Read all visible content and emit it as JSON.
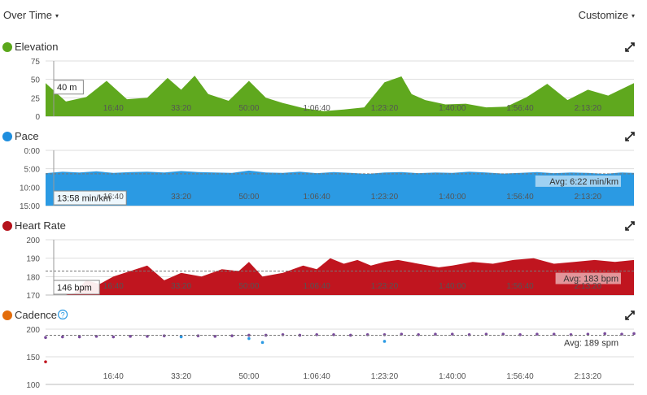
{
  "header": {
    "view_label": "Over Time",
    "caret": "▾",
    "customize_label": "Customize"
  },
  "x_ticks": [
    "16:40",
    "33:20",
    "50:00",
    "1:06:40",
    "1:23:20",
    "1:40:00",
    "1:56:40",
    "2:13:20"
  ],
  "chart_data": [
    {
      "type": "area",
      "title": "Elevation",
      "color": "#5fa81e",
      "marker_color": "#5ba71b",
      "icon": "expand-icon",
      "ylim": [
        0,
        75
      ],
      "yticks": [
        "75",
        "50",
        "25",
        "0"
      ],
      "reverse": false,
      "x_ticks_s": [
        1000,
        2000,
        3000,
        4000,
        5000,
        6000,
        7000,
        8000
      ],
      "xlim_s": [
        0,
        8680
      ],
      "tooltip": "40 m",
      "tooltip_value": 40,
      "avg_label": "",
      "x_s": [
        0,
        300,
        600,
        900,
        1200,
        1500,
        1800,
        2000,
        2200,
        2400,
        2700,
        3000,
        3250,
        3500,
        3800,
        4100,
        4400,
        4700,
        5000,
        5250,
        5400,
        5600,
        5900,
        6200,
        6500,
        6800,
        7100,
        7400,
        7700,
        8000,
        8300,
        8680
      ],
      "values": [
        45,
        20,
        26,
        48,
        23,
        25,
        52,
        36,
        55,
        30,
        21,
        48,
        25,
        18,
        11,
        7,
        9,
        12,
        46,
        54,
        30,
        22,
        16,
        17,
        12,
        13,
        26,
        44,
        22,
        36,
        28,
        45
      ]
    },
    {
      "type": "area",
      "title": "Pace",
      "color": "#2b9ae3",
      "marker_color": "#1e8ede",
      "icon": "expand-icon",
      "ylim": [
        0,
        15
      ],
      "yticks": [
        "0:00",
        "5:00",
        "10:00",
        "15:00"
      ],
      "reverse": true,
      "x_ticks_s": [
        1000,
        2000,
        3000,
        4000,
        5000,
        6000,
        7000,
        8000
      ],
      "xlim_s": [
        0,
        8680
      ],
      "tooltip": "13:58 min/km",
      "tooltip_value": 13.97,
      "avg_label": "Avg: 6:22 min/km",
      "avg_value": 6.37,
      "x_s": [
        0,
        250,
        500,
        750,
        1000,
        1250,
        1500,
        1750,
        2000,
        2250,
        2500,
        2750,
        3000,
        3250,
        3500,
        3750,
        4000,
        4250,
        4500,
        4750,
        5000,
        5250,
        5500,
        5750,
        6000,
        6250,
        6500,
        6750,
        7000,
        7250,
        7500,
        7750,
        8000,
        8250,
        8500,
        8680
      ],
      "values": [
        6.2,
        5.8,
        6.0,
        5.7,
        6.1,
        5.9,
        5.8,
        6.0,
        5.6,
        5.9,
        6.0,
        6.1,
        5.5,
        6.0,
        6.1,
        5.8,
        6.2,
        5.9,
        6.1,
        6.4,
        6.0,
        5.9,
        6.2,
        6.0,
        6.1,
        5.8,
        6.0,
        6.3,
        6.1,
        5.9,
        6.2,
        6.0,
        6.1,
        6.4,
        6.0,
        6.1
      ]
    },
    {
      "type": "area",
      "title": "Heart Rate",
      "color": "#c0151f",
      "marker_color": "#b5121b",
      "icon": "expand-icon",
      "ylim": [
        170,
        200
      ],
      "yticks": [
        "200",
        "190",
        "180",
        "170"
      ],
      "reverse": false,
      "x_ticks_s": [
        1000,
        2000,
        3000,
        4000,
        5000,
        6000,
        7000,
        8000
      ],
      "xlim_s": [
        0,
        8680
      ],
      "tooltip": "146 bpm",
      "tooltip_value": 146,
      "avg_label": "Avg: 183 bpm",
      "avg_value": 183,
      "x_s": [
        0,
        300,
        420,
        600,
        800,
        1000,
        1250,
        1500,
        1750,
        2000,
        2300,
        2600,
        2850,
        3000,
        3200,
        3500,
        3800,
        4000,
        4200,
        4400,
        4600,
        4800,
        5000,
        5200,
        5500,
        5800,
        6000,
        6300,
        6600,
        6900,
        7200,
        7500,
        7800,
        8100,
        8400,
        8680
      ],
      "values": [
        165,
        166,
        171,
        178,
        176,
        180,
        183,
        186,
        178,
        182,
        180,
        184,
        183,
        188,
        180,
        182,
        186,
        184,
        190,
        187,
        189,
        186,
        188,
        189,
        187,
        185,
        186,
        188,
        187,
        189,
        190,
        187,
        188,
        189,
        188,
        189
      ]
    },
    {
      "type": "scatter",
      "title": "Cadence",
      "color": "#7a4d9c",
      "marker_color": "#e36c0a",
      "icon": "expand-icon",
      "help_icon": "?",
      "ylim": [
        100,
        200
      ],
      "yticks": [
        "200",
        "150",
        "100"
      ],
      "reverse": false,
      "x_ticks_s": [
        1000,
        2000,
        3000,
        4000,
        5000,
        6000,
        7000,
        8000
      ],
      "xlim_s": [
        0,
        8680
      ],
      "tooltip": "",
      "avg_label": "Avg: 189 spm",
      "avg_value": 189,
      "x_s": [
        0,
        250,
        500,
        750,
        1000,
        1250,
        1500,
        1750,
        2000,
        2250,
        2500,
        2750,
        3000,
        3250,
        3500,
        3750,
        4000,
        4250,
        4500,
        4750,
        5000,
        5250,
        5500,
        5750,
        6000,
        6250,
        6500,
        6750,
        7000,
        7250,
        7500,
        7750,
        8000,
        8250,
        8500,
        8680
      ],
      "values": [
        185,
        186,
        186,
        187,
        186,
        187,
        187,
        188,
        187,
        188,
        187,
        188,
        189,
        189,
        190,
        189,
        190,
        190,
        189,
        190,
        190,
        191,
        190,
        191,
        191,
        190,
        191,
        191,
        190,
        191,
        191,
        190,
        191,
        192,
        191,
        192
      ],
      "outliers": [
        {
          "x": 0,
          "y": 141
        },
        {
          "x": 3200,
          "y": 176
        },
        {
          "x": 5000,
          "y": 178
        },
        {
          "x": 2000,
          "y": 186
        },
        {
          "x": 3000,
          "y": 183
        }
      ]
    }
  ]
}
